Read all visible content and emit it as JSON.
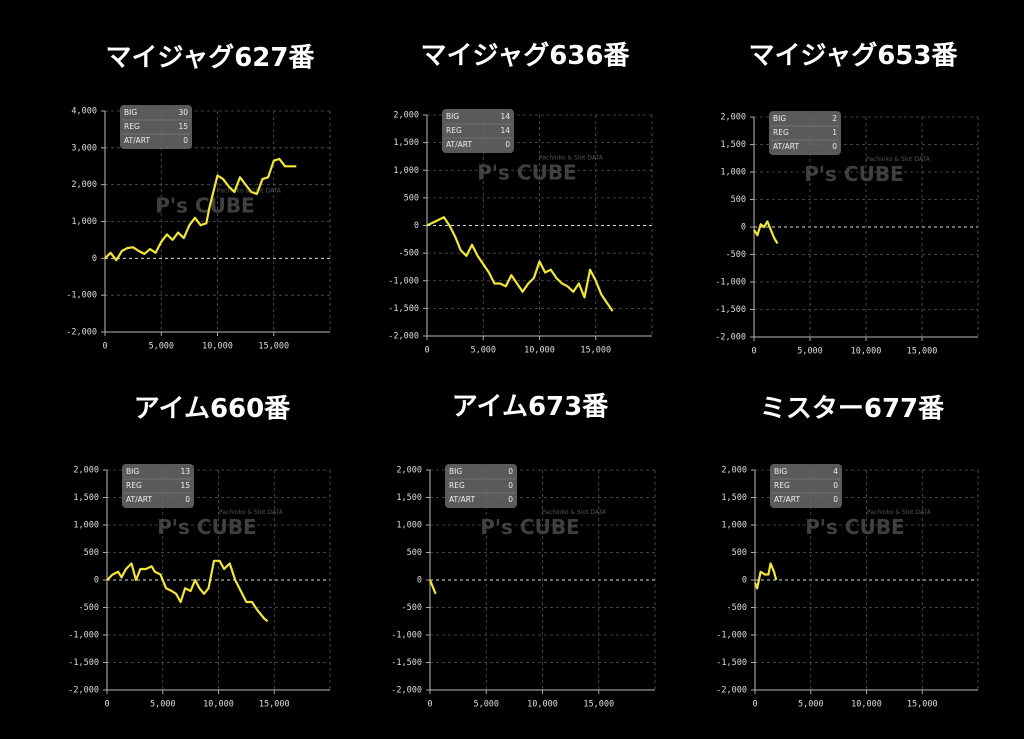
{
  "watermark": "P's CUBE",
  "watermark_sub": "Pachinko & Slot DATA",
  "chart_data": [
    {
      "type": "line",
      "title": "マイジャグ627番",
      "color": "#f2e636",
      "stats": [
        {
          "label": "BIG",
          "value": 30
        },
        {
          "label": "REG",
          "value": 15
        },
        {
          "label": "AT/ART",
          "value": 0
        }
      ],
      "x": [
        0,
        500,
        1000,
        1500,
        2000,
        2500,
        3000,
        3500,
        4000,
        4500,
        5000,
        5500,
        6000,
        6500,
        7000,
        7500,
        8000,
        8500,
        9000,
        9300,
        10000,
        10500,
        11000,
        11500,
        12000,
        12500,
        13000,
        13500,
        14000,
        14500,
        15000,
        15500,
        16000,
        17000
      ],
      "values": [
        0,
        150,
        -50,
        200,
        280,
        300,
        200,
        120,
        250,
        150,
        450,
        650,
        500,
        700,
        550,
        900,
        1100,
        900,
        950,
        1400,
        2250,
        2150,
        1950,
        1800,
        2200,
        2000,
        1800,
        1750,
        2150,
        2200,
        2650,
        2700,
        2500,
        2500
      ],
      "xlim": [
        0,
        20000
      ],
      "ylim": [
        -2000,
        4000
      ],
      "xticks": [
        0,
        {
          "value": 5000,
          "label": "5,000"
        },
        {
          "value": 10000,
          "label": "10,000"
        },
        {
          "value": 15000,
          "label": "15,000"
        }
      ],
      "yticks": [
        {
          "value": -2000,
          "label": "-2,000"
        },
        {
          "value": -1000,
          "label": "-1,000"
        },
        0,
        {
          "value": 1000,
          "label": "1,000"
        },
        {
          "value": 2000,
          "label": "2,000"
        },
        {
          "value": 3000,
          "label": "3,000"
        },
        {
          "value": 4000,
          "label": "4,000"
        }
      ],
      "grid": true
    },
    {
      "type": "line",
      "title": "マイジャグ636番",
      "color": "#f2e636",
      "stats": [
        {
          "label": "BIG",
          "value": 14
        },
        {
          "label": "REG",
          "value": 14
        },
        {
          "label": "AT/ART",
          "value": 0
        }
      ],
      "x": [
        0,
        1000,
        1500,
        2000,
        2500,
        3000,
        3500,
        4000,
        4500,
        5000,
        5500,
        6000,
        6500,
        7000,
        7500,
        8000,
        8500,
        9000,
        9500,
        10000,
        10500,
        11000,
        11500,
        12000,
        12500,
        13000,
        13500,
        14000,
        14500,
        15000,
        15500,
        16000,
        16500
      ],
      "values": [
        0,
        100,
        150,
        0,
        -200,
        -450,
        -550,
        -350,
        -550,
        -700,
        -850,
        -1050,
        -1050,
        -1100,
        -900,
        -1050,
        -1200,
        -1050,
        -950,
        -650,
        -850,
        -800,
        -950,
        -1050,
        -1100,
        -1200,
        -1050,
        -1300,
        -800,
        -1000,
        -1250,
        -1400,
        -1550
      ],
      "xlim": [
        0,
        20000
      ],
      "ylim": [
        -2000,
        2000
      ],
      "xticks": [
        0,
        {
          "value": 5000,
          "label": "5,000"
        },
        {
          "value": 10000,
          "label": "10,000"
        },
        {
          "value": 15000,
          "label": "15,000"
        }
      ],
      "yticks": [
        {
          "value": -2000,
          "label": "-2,000"
        },
        {
          "value": -1500,
          "label": "-1,500"
        },
        {
          "value": -1000,
          "label": "-1,000"
        },
        -500,
        0,
        500,
        {
          "value": 1000,
          "label": "1,000"
        },
        {
          "value": 1500,
          "label": "1,500"
        },
        {
          "value": 2000,
          "label": "2,000"
        }
      ],
      "grid": true
    },
    {
      "type": "line",
      "title": "マイジャグ653番",
      "color": "#f2e636",
      "stats": [
        {
          "label": "BIG",
          "value": 2
        },
        {
          "label": "REG",
          "value": 1
        },
        {
          "label": "AT/ART",
          "value": 0
        }
      ],
      "x": [
        0,
        300,
        600,
        900,
        1200,
        1500,
        1800,
        2100
      ],
      "values": [
        -50,
        -150,
        50,
        0,
        100,
        -50,
        -200,
        -300
      ],
      "xlim": [
        0,
        20000
      ],
      "ylim": [
        -2000,
        2000
      ],
      "xticks": [
        0,
        {
          "value": 5000,
          "label": "5,000"
        },
        {
          "value": 10000,
          "label": "10,000"
        },
        {
          "value": 15000,
          "label": "15,000"
        }
      ],
      "yticks": [
        {
          "value": -2000,
          "label": "-2,000"
        },
        {
          "value": -1500,
          "label": "-1,500"
        },
        {
          "value": -1000,
          "label": "-1,000"
        },
        -500,
        0,
        500,
        {
          "value": 1000,
          "label": "1,000"
        },
        {
          "value": 1500,
          "label": "1,500"
        },
        {
          "value": 2000,
          "label": "2,000"
        }
      ],
      "grid": true
    },
    {
      "type": "line",
      "title": "アイム660番",
      "color": "#f2e636",
      "stats": [
        {
          "label": "BIG",
          "value": 13
        },
        {
          "label": "REG",
          "value": 15
        },
        {
          "label": "AT/ART",
          "value": 0
        }
      ],
      "x": [
        0,
        500,
        1000,
        1300,
        1700,
        2200,
        2600,
        3000,
        3500,
        4000,
        4300,
        4800,
        5300,
        5800,
        6200,
        6600,
        7000,
        7500,
        7900,
        8300,
        8700,
        9100,
        9600,
        10100,
        10500,
        11000,
        11500,
        12000,
        12500,
        13000,
        13500,
        14100,
        14400
      ],
      "values": [
        0,
        100,
        150,
        50,
        200,
        300,
        0,
        200,
        200,
        250,
        150,
        100,
        -150,
        -200,
        -250,
        -400,
        -150,
        -200,
        0,
        -150,
        -250,
        -150,
        350,
        350,
        200,
        300,
        0,
        -200,
        -400,
        -400,
        -550,
        -700,
        -750
      ],
      "xlim": [
        0,
        20000
      ],
      "ylim": [
        -2000,
        2000
      ],
      "xticks": [
        0,
        {
          "value": 5000,
          "label": "5,000"
        },
        {
          "value": 10000,
          "label": "10,000"
        },
        {
          "value": 15000,
          "label": "15,000"
        }
      ],
      "yticks": [
        {
          "value": -2000,
          "label": "-2,000"
        },
        {
          "value": -1500,
          "label": "-1,500"
        },
        {
          "value": -1000,
          "label": "-1,000"
        },
        -500,
        0,
        500,
        {
          "value": 1000,
          "label": "1,000"
        },
        {
          "value": 1500,
          "label": "1,500"
        },
        {
          "value": 2000,
          "label": "2,000"
        }
      ],
      "grid": true
    },
    {
      "type": "line",
      "title": "アイム673番",
      "color": "#f2e636",
      "stats": [
        {
          "label": "BIG",
          "value": 0
        },
        {
          "label": "REG",
          "value": 0
        },
        {
          "label": "AT/ART",
          "value": 0
        }
      ],
      "x": [
        0,
        300,
        500
      ],
      "values": [
        0,
        -150,
        -250
      ],
      "xlim": [
        0,
        20000
      ],
      "ylim": [
        -2000,
        2000
      ],
      "xticks": [
        0,
        {
          "value": 5000,
          "label": "5,000"
        },
        {
          "value": 10000,
          "label": "10,000"
        },
        {
          "value": 15000,
          "label": "15,000"
        }
      ],
      "yticks": [
        {
          "value": -2000,
          "label": "-2,000"
        },
        {
          "value": -1500,
          "label": "-1,500"
        },
        {
          "value": -1000,
          "label": "-1,000"
        },
        -500,
        0,
        500,
        {
          "value": 1000,
          "label": "1,000"
        },
        {
          "value": 1500,
          "label": "1,500"
        },
        {
          "value": 2000,
          "label": "2,000"
        }
      ],
      "grid": true
    },
    {
      "type": "line",
      "title": "ミスター677番",
      "color": "#f2e636",
      "stats": [
        {
          "label": "BIG",
          "value": 4
        },
        {
          "label": "REG",
          "value": 0
        },
        {
          "label": "AT/ART",
          "value": 0
        }
      ],
      "x": [
        0,
        200,
        500,
        900,
        1200,
        1400,
        1700,
        1900
      ],
      "values": [
        -50,
        -150,
        150,
        100,
        100,
        300,
        150,
        0
      ],
      "xlim": [
        0,
        20000
      ],
      "ylim": [
        -2000,
        2000
      ],
      "xticks": [
        0,
        {
          "value": 5000,
          "label": "5,000"
        },
        {
          "value": 10000,
          "label": "10,000"
        },
        {
          "value": 15000,
          "label": "15,000"
        }
      ],
      "yticks": [
        {
          "value": -2000,
          "label": "-2,000"
        },
        {
          "value": -1500,
          "label": "-1,500"
        },
        {
          "value": -1000,
          "label": "-1,000"
        },
        -500,
        0,
        500,
        {
          "value": 1000,
          "label": "1,000"
        },
        {
          "value": 1500,
          "label": "1,500"
        },
        {
          "value": 2000,
          "label": "2,000"
        }
      ],
      "grid": true
    }
  ]
}
